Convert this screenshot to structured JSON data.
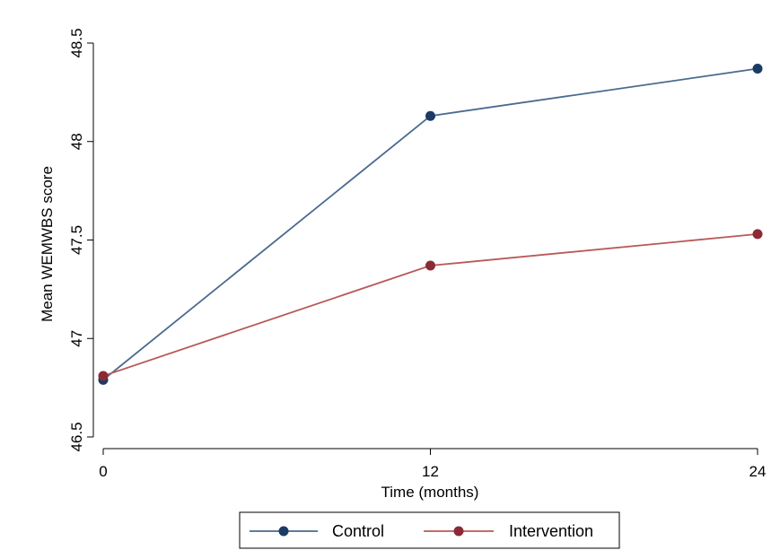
{
  "chart_data": {
    "type": "line",
    "title": "",
    "xlabel": "Time (months)",
    "ylabel": "Mean WEMWBS score",
    "x": [
      0,
      12,
      24
    ],
    "xticks": [
      "0",
      "12",
      "24"
    ],
    "xlim": [
      0,
      24
    ],
    "ylim": [
      46.5,
      48.5
    ],
    "yticks": [
      "46.5",
      "47",
      "47.5",
      "48",
      "48.5"
    ],
    "grid": false,
    "legend_position": "bottom",
    "series": [
      {
        "name": "Control",
        "color": "#4a6a8f",
        "marker_color": "#1b3a66",
        "values": [
          46.79,
          48.13,
          48.37
        ]
      },
      {
        "name": "Intervention",
        "color": "#b85a5a",
        "marker_color": "#8b2a35",
        "values": [
          46.81,
          47.37,
          47.53
        ]
      }
    ]
  }
}
